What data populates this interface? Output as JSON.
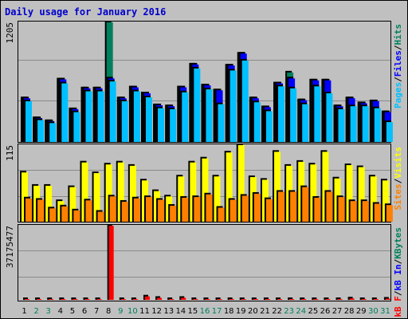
{
  "title": "Daily usage for January 2016",
  "colors": {
    "hits": "#00805c",
    "files": "#0000ff",
    "pages": "#00c0ff",
    "visits": "#ffff00",
    "sites": "#ff8000",
    "kbytes_in": "#ff0000",
    "kbytes_out": "#0000ff",
    "kbytes_f": "#00805c",
    "weekend_label": "#00805c",
    "weekday_label": "#000000"
  },
  "chart_data": [
    {
      "type": "bar",
      "panel": "hits",
      "y_max_label": "1205",
      "ylim": [
        0,
        1205
      ],
      "legend": [
        {
          "text": "Hits",
          "color": "#00805c"
        },
        {
          "text": "Files",
          "color": "#0000ff"
        },
        {
          "text": "Pages",
          "color": "#00c0ff"
        }
      ],
      "categories": [
        "1",
        "2",
        "3",
        "4",
        "5",
        "6",
        "7",
        "8",
        "9",
        "10",
        "11",
        "12",
        "13",
        "14",
        "15",
        "16",
        "17",
        "18",
        "19",
        "20",
        "21",
        "22",
        "23",
        "24",
        "25",
        "26",
        "27",
        "28",
        "29",
        "30",
        "31"
      ],
      "series": [
        {
          "name": "Hits",
          "values": [
            440,
            240,
            210,
            630,
            330,
            540,
            540,
            1205,
            440,
            550,
            490,
            370,
            360,
            550,
            780,
            570,
            520,
            770,
            890,
            440,
            350,
            590,
            700,
            420,
            620,
            620,
            360,
            440,
            390,
            410,
            300
          ]
        },
        {
          "name": "Files",
          "values": [
            440,
            240,
            210,
            630,
            330,
            540,
            540,
            640,
            440,
            550,
            490,
            370,
            360,
            550,
            780,
            570,
            520,
            770,
            890,
            440,
            350,
            590,
            640,
            420,
            620,
            620,
            360,
            440,
            390,
            410,
            300
          ]
        },
        {
          "name": "Pages",
          "values": [
            410,
            220,
            190,
            590,
            300,
            510,
            510,
            610,
            410,
            510,
            450,
            340,
            330,
            500,
            740,
            530,
            380,
            720,
            820,
            400,
            310,
            560,
            540,
            380,
            560,
            490,
            330,
            360,
            360,
            340,
            200
          ]
        }
      ]
    },
    {
      "type": "bar",
      "panel": "visits",
      "y_max_label": "115",
      "ylim": [
        0,
        115
      ],
      "legend": [
        {
          "text": "Visits",
          "color": "#ffff00"
        },
        {
          "text": "Sites",
          "color": "#ff8000"
        }
      ],
      "categories": [
        "1",
        "2",
        "3",
        "4",
        "5",
        "6",
        "7",
        "8",
        "9",
        "10",
        "11",
        "12",
        "13",
        "14",
        "15",
        "16",
        "17",
        "18",
        "19",
        "20",
        "21",
        "22",
        "23",
        "24",
        "25",
        "26",
        "27",
        "28",
        "29",
        "30",
        "31"
      ],
      "series": [
        {
          "name": "Visits",
          "values": [
            74,
            54,
            54,
            31,
            52,
            89,
            73,
            86,
            89,
            84,
            62,
            46,
            38,
            68,
            89,
            95,
            68,
            104,
            115,
            67,
            63,
            105,
            84,
            90,
            86,
            105,
            65,
            85,
            82,
            68,
            62
          ]
        },
        {
          "name": "Sites",
          "values": [
            35,
            33,
            20,
            23,
            17,
            32,
            15,
            38,
            30,
            35,
            37,
            33,
            24,
            36,
            37,
            41,
            21,
            33,
            39,
            42,
            34,
            45,
            45,
            52,
            36,
            45,
            37,
            31,
            31,
            27,
            25
          ]
        }
      ]
    },
    {
      "type": "bar",
      "panel": "kbytes",
      "y_max_label": "37175477",
      "ylim": [
        0,
        37175477
      ],
      "legend": [
        {
          "text": "KBytes",
          "color": "#00805c"
        },
        {
          "text": "kB In",
          "color": "#0000ff"
        },
        {
          "text": "kB F",
          "color": "#ff0000"
        }
      ],
      "categories": [
        "1",
        "2",
        "3",
        "4",
        "5",
        "6",
        "7",
        "8",
        "9",
        "10",
        "11",
        "12",
        "13",
        "14",
        "15",
        "16",
        "17",
        "18",
        "19",
        "20",
        "21",
        "22",
        "23",
        "24",
        "25",
        "26",
        "27",
        "28",
        "29",
        "30",
        "31"
      ],
      "series": [
        {
          "name": "KBytes",
          "values": [
            600000,
            600000,
            600000,
            600000,
            600000,
            600000,
            600000,
            37175477,
            600000,
            600000,
            2100000,
            1400000,
            600000,
            1400000,
            600000,
            600000,
            600000,
            600000,
            600000,
            600000,
            600000,
            600000,
            600000,
            600000,
            600000,
            600000,
            600000,
            1100000,
            600000,
            600000,
            1000000
          ]
        }
      ]
    }
  ],
  "x_axis": {
    "days": [
      "1",
      "2",
      "3",
      "4",
      "5",
      "6",
      "7",
      "8",
      "9",
      "10",
      "11",
      "12",
      "13",
      "14",
      "15",
      "16",
      "17",
      "18",
      "19",
      "20",
      "21",
      "22",
      "23",
      "24",
      "25",
      "26",
      "27",
      "28",
      "29",
      "30",
      "31"
    ],
    "weekend": [
      false,
      true,
      true,
      false,
      false,
      false,
      false,
      false,
      true,
      true,
      false,
      false,
      false,
      false,
      false,
      true,
      true,
      false,
      false,
      false,
      false,
      false,
      true,
      true,
      false,
      false,
      false,
      false,
      false,
      true,
      true
    ]
  }
}
